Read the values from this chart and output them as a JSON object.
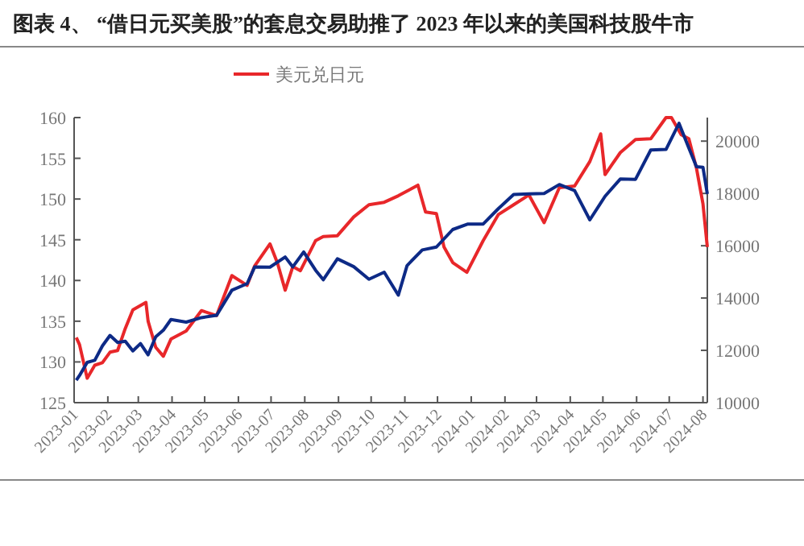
{
  "chart_data": {
    "type": "line",
    "title": "图表 4、 “借日元买美股”的套息交易助推了 2023 年以来的美国科技股牛市",
    "xlim": [
      "2023-01-01",
      "2024-08-05"
    ],
    "xticks": [
      "2023-01",
      "2023-02",
      "2023-03",
      "2023-04",
      "2023-05",
      "2023-06",
      "2023-07",
      "2023-08",
      "2023-09",
      "2023-10",
      "2023-11",
      "2023-12",
      "2024-01",
      "2024-02",
      "2024-03",
      "2024-04",
      "2024-05",
      "2024-06",
      "2024-07",
      "2024-08"
    ],
    "ylim": [
      125,
      160
    ],
    "yticks": [
      125,
      130,
      135,
      140,
      145,
      150,
      155,
      160
    ],
    "y2lim": [
      10000,
      20900
    ],
    "y2ticks": [
      10000,
      12000,
      14000,
      16000,
      18000,
      20000
    ],
    "grid": false,
    "legend": "top",
    "marker": "none",
    "line_style": "solid",
    "series": [
      {
        "name": "美元兑日元",
        "color": "#e8272a",
        "x": [
          "2023-01-03",
          "2023-01-06",
          "2023-01-13",
          "2023-01-20",
          "2023-01-27",
          "2023-02-03",
          "2023-02-10",
          "2023-02-17",
          "2023-02-24",
          "2023-03-08",
          "2023-03-10",
          "2023-03-17",
          "2023-03-24",
          "2023-03-31",
          "2023-04-14",
          "2023-04-28",
          "2023-05-12",
          "2023-05-26",
          "2023-06-09",
          "2023-06-16",
          "2023-06-30",
          "2023-07-07",
          "2023-07-14",
          "2023-07-21",
          "2023-07-28",
          "2023-08-11",
          "2023-08-18",
          "2023-08-31",
          "2023-09-15",
          "2023-09-29",
          "2023-10-13",
          "2023-10-26",
          "2023-11-13",
          "2023-11-20",
          "2023-11-30",
          "2023-12-07",
          "2023-12-15",
          "2023-12-28",
          "2024-01-12",
          "2024-01-26",
          "2024-02-09",
          "2024-02-23",
          "2024-03-08",
          "2024-03-22",
          "2024-04-05",
          "2024-04-19",
          "2024-04-29",
          "2024-05-03",
          "2024-05-17",
          "2024-05-31",
          "2024-06-14",
          "2024-06-28",
          "2024-07-03",
          "2024-07-12",
          "2024-07-19",
          "2024-07-26",
          "2024-08-01",
          "2024-08-05"
        ],
        "values": [
          133,
          132.1,
          128,
          129.6,
          129.9,
          131.2,
          131.4,
          134.1,
          136.4,
          137.3,
          135,
          131.8,
          130.7,
          132.8,
          133.8,
          136.3,
          135.7,
          140.6,
          139.4,
          141.8,
          144.5,
          142.1,
          138.8,
          141.7,
          141.2,
          144.9,
          145.4,
          145.5,
          147.8,
          149.3,
          149.6,
          150.4,
          151.7,
          148.4,
          148.2,
          144.1,
          142.2,
          141,
          144.9,
          148.1,
          149.3,
          150.5,
          147.1,
          151.4,
          151.6,
          154.6,
          158,
          153,
          155.7,
          157.3,
          157.4,
          160,
          160,
          157.9,
          157.4,
          153.8,
          149.4,
          144.1
        ]
      },
      {
        "color": "#0d2a86",
        "axis": "y2",
        "x": [
          "2023-01-03",
          "2023-01-06",
          "2023-01-13",
          "2023-01-20",
          "2023-01-27",
          "2023-02-03",
          "2023-02-10",
          "2023-02-17",
          "2023-02-24",
          "2023-03-03",
          "2023-03-10",
          "2023-03-17",
          "2023-03-24",
          "2023-03-31",
          "2023-04-14",
          "2023-04-28",
          "2023-05-12",
          "2023-05-26",
          "2023-06-09",
          "2023-06-16",
          "2023-06-30",
          "2023-07-14",
          "2023-07-21",
          "2023-07-31",
          "2023-08-11",
          "2023-08-18",
          "2023-08-31",
          "2023-09-15",
          "2023-09-29",
          "2023-10-13",
          "2023-10-26",
          "2023-11-03",
          "2023-11-17",
          "2023-11-30",
          "2023-12-15",
          "2023-12-29",
          "2024-01-12",
          "2024-01-26",
          "2024-02-09",
          "2024-02-23",
          "2024-03-08",
          "2024-03-22",
          "2024-04-05",
          "2024-04-19",
          "2024-05-03",
          "2024-05-17",
          "2024-05-31",
          "2024-06-14",
          "2024-06-28",
          "2024-07-10",
          "2024-07-19",
          "2024-07-26",
          "2024-08-01",
          "2024-08-05"
        ],
        "values": [
          10860,
          11040,
          11540,
          11620,
          12170,
          12570,
          12300,
          12350,
          11980,
          12260,
          11830,
          12520,
          12770,
          13180,
          13080,
          13250,
          13340,
          14300,
          14550,
          15190,
          15180,
          15570,
          15190,
          15760,
          15060,
          14700,
          15500,
          15200,
          14720,
          14990,
          14110,
          15240,
          15840,
          15950,
          16620,
          16830,
          16830,
          17420,
          17960,
          17980,
          18000,
          18340,
          18110,
          16990,
          17890,
          18550,
          18540,
          19660,
          19680,
          20680,
          19740,
          19020,
          19000,
          17980
        ]
      }
    ]
  }
}
